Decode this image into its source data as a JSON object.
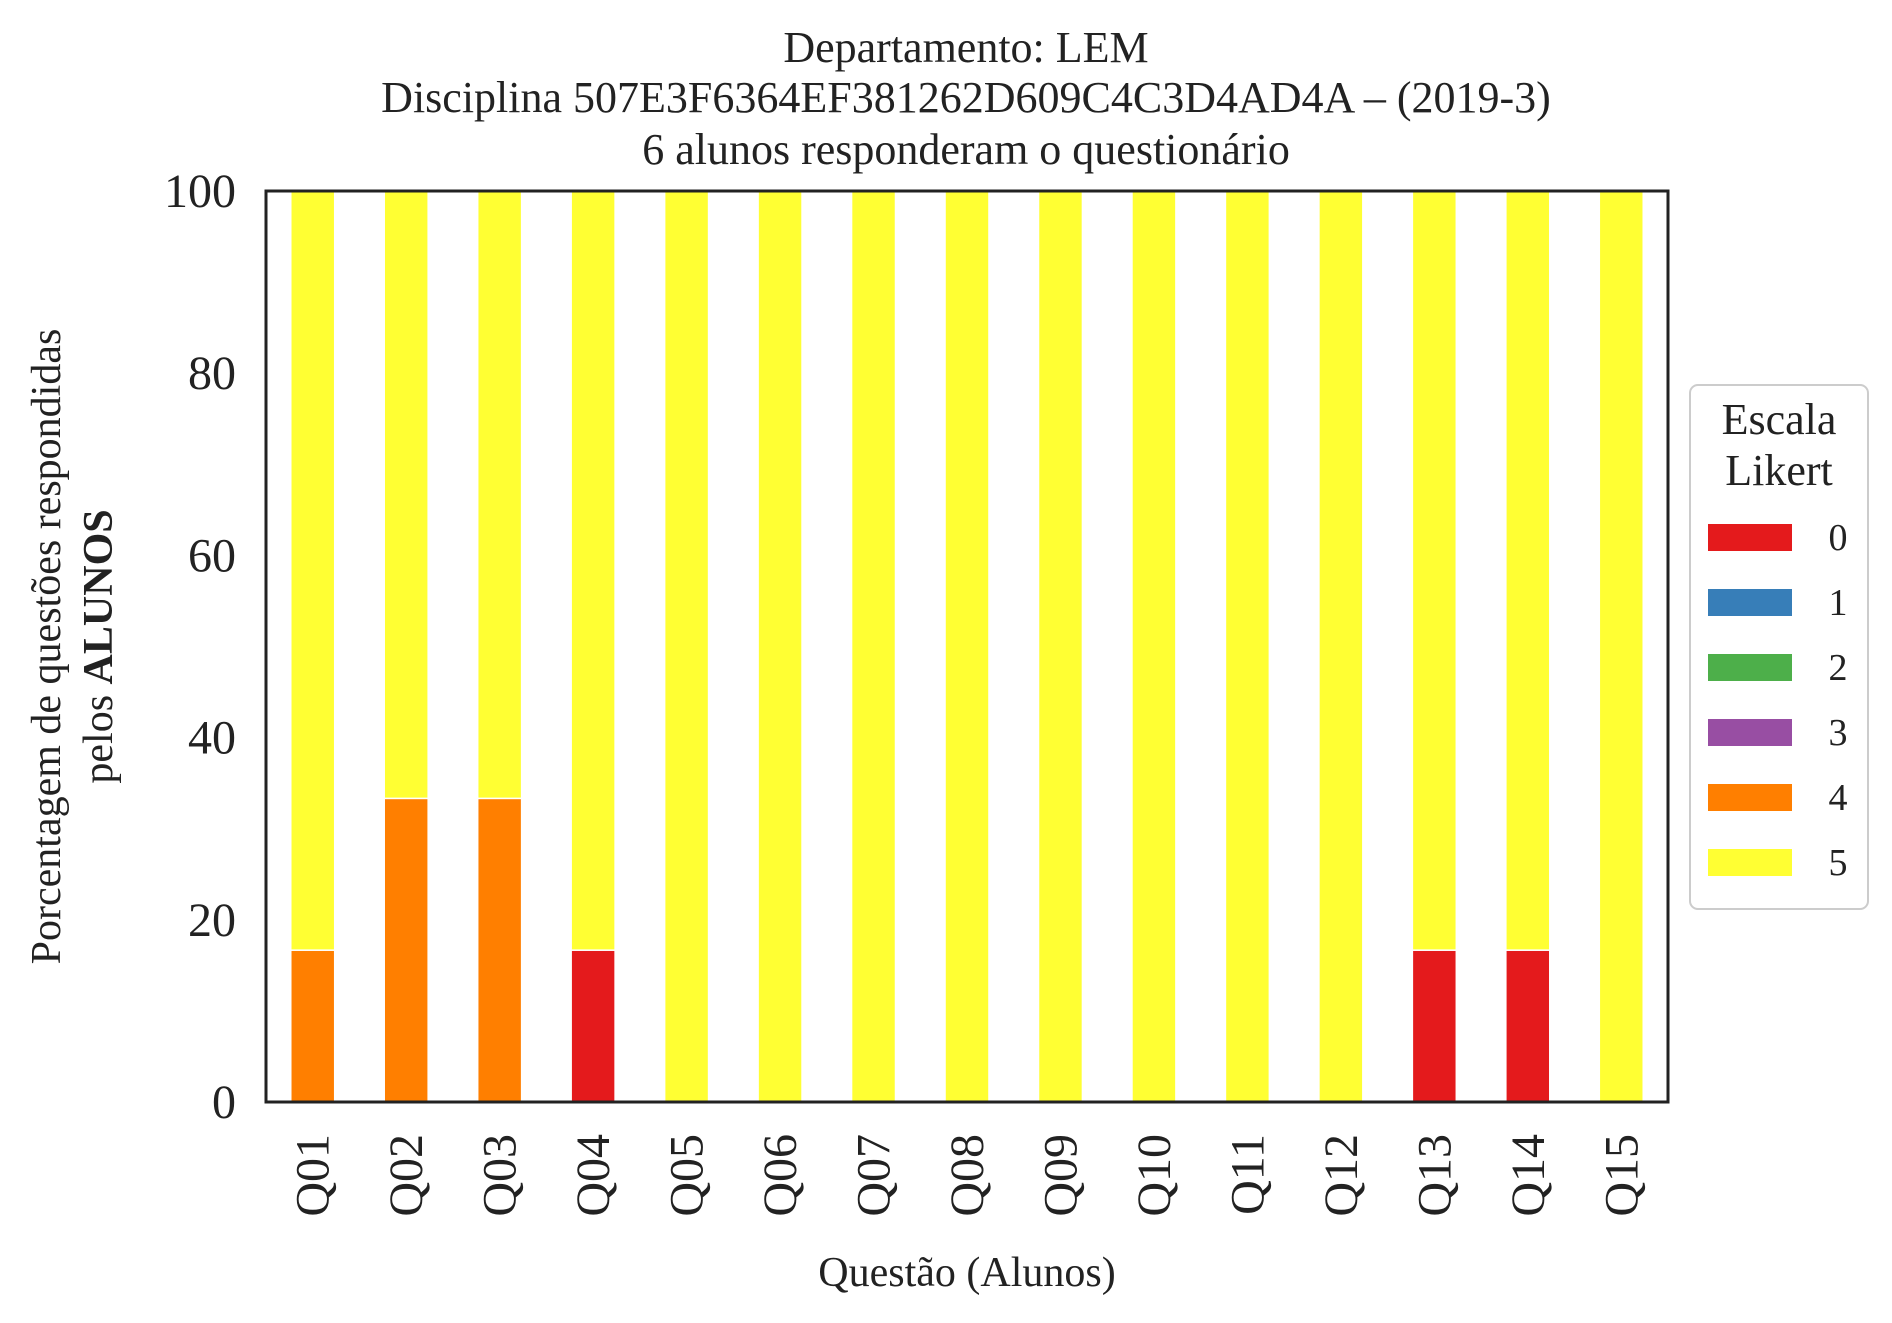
{
  "chart_data": {
    "type": "bar",
    "stacked": true,
    "title_lines": [
      "Departamento: LEM",
      "Disciplina 507E3F6364EF381262D609C4C3D4AD4A – (2019-3)",
      "6 alunos responderam o questionário"
    ],
    "xlabel": "Questão (Alunos)",
    "ylabel_line1": "Porcentagem de questões respondidas",
    "ylabel_line2_prefix": "pelos ",
    "ylabel_line2_bold": "ALUNOS",
    "ylim": [
      0,
      100
    ],
    "yticks": [
      "0",
      "20",
      "40",
      "60",
      "80",
      "100"
    ],
    "categories": [
      "Q01",
      "Q02",
      "Q03",
      "Q04",
      "Q05",
      "Q06",
      "Q07",
      "Q08",
      "Q09",
      "Q10",
      "Q11",
      "Q12",
      "Q13",
      "Q14",
      "Q15"
    ],
    "legend": {
      "title_lines": [
        "Escala",
        "Likert"
      ],
      "position": "center-right"
    },
    "series": [
      {
        "name": "0",
        "color": "#e41a1c",
        "values": [
          0,
          0,
          0,
          16.67,
          0,
          0,
          0,
          0,
          0,
          0,
          0,
          0,
          16.67,
          16.67,
          0
        ]
      },
      {
        "name": "1",
        "color": "#377eb8",
        "values": [
          0,
          0,
          0,
          0,
          0,
          0,
          0,
          0,
          0,
          0,
          0,
          0,
          0,
          0,
          0
        ]
      },
      {
        "name": "2",
        "color": "#4daf4a",
        "values": [
          0,
          0,
          0,
          0,
          0,
          0,
          0,
          0,
          0,
          0,
          0,
          0,
          0,
          0,
          0
        ]
      },
      {
        "name": "3",
        "color": "#984ea3",
        "values": [
          0,
          0,
          0,
          0,
          0,
          0,
          0,
          0,
          0,
          0,
          0,
          0,
          0,
          0,
          0
        ]
      },
      {
        "name": "4",
        "color": "#ff7f00",
        "values": [
          16.67,
          33.33,
          33.33,
          0,
          0,
          0,
          0,
          0,
          0,
          0,
          0,
          0,
          0,
          0,
          0
        ]
      },
      {
        "name": "5",
        "color": "#ffff33",
        "values": [
          83.33,
          66.67,
          66.67,
          83.33,
          100,
          100,
          100,
          100,
          100,
          100,
          100,
          100,
          83.33,
          83.33,
          100
        ]
      }
    ]
  }
}
